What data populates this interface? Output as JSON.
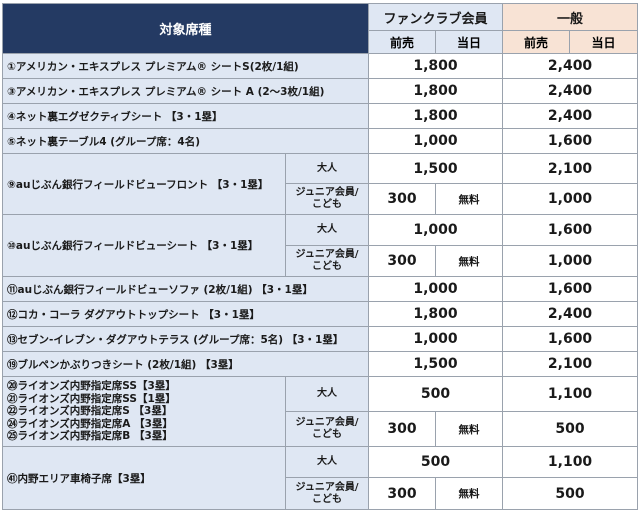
{
  "header": {
    "seat_type": "対象席種",
    "fanclub": "ファンクラブ会員",
    "general": "一般",
    "advance": "前売",
    "same_day": "当日"
  },
  "types": {
    "adult": "大人",
    "junior_line1": "ジュニア会員/",
    "junior_line2": "こども"
  },
  "rows": [
    {
      "name": "①アメリカン・エキスプレス プレミアム® シートS(2枚/1組)",
      "fc": "1,800",
      "gen": "2,400"
    },
    {
      "name": "③アメリカン・エキスプレス プレミアム® シート A (2～3枚/1組)",
      "fc": "1,800",
      "gen": "2,400"
    },
    {
      "name": "④ネット裏エグゼクティブシート 【3・1塁】",
      "fc": "1,800",
      "gen": "2,400"
    },
    {
      "name": "⑤ネット裏テーブル4 (グループ席：4名)",
      "fc": "1,000",
      "gen": "1,600"
    },
    {
      "name": "⑨auじぶん銀行フィールドビューフロント 【3・1塁】",
      "adult_fc": "1,500",
      "adult_gen": "2,100",
      "jr_fc_adv": "300",
      "jr_fc_day": "無料",
      "jr_gen": "1,000"
    },
    {
      "name": "⑩auじぶん銀行フィールドビューシート 【3・1塁】",
      "adult_fc": "1,000",
      "adult_gen": "1,600",
      "jr_fc_adv": "300",
      "jr_fc_day": "無料",
      "jr_gen": "1,000"
    },
    {
      "name": "⑪auじぶん銀行フィールドビューソファ (2枚/1組) 【3・1塁】",
      "fc": "1,000",
      "gen": "1,600"
    },
    {
      "name": "⑫コカ・コーラ ダグアウトトップシート 【3・1塁】",
      "fc": "1,800",
      "gen": "2,400"
    },
    {
      "name": "⑬セブン-イレブン・ダグアウトテラス (グループ席：5名) 【3・1塁】",
      "fc": "1,000",
      "gen": "1,600"
    },
    {
      "name": "⑲ブルペンかぶりつきシート (2枚/1組) 【3塁】",
      "fc": "1,500",
      "gen": "2,100"
    },
    {
      "names": [
        "⑳ライオンズ内野指定席SS【3塁】",
        "㉑ライオンズ内野指定席SS【1塁】",
        "㉒ライオンズ内野指定席S 【3塁】",
        "㉔ライオンズ内野指定席A 【3塁】",
        "㉕ライオンズ内野指定席B 【3塁】"
      ],
      "adult_fc": "500",
      "adult_gen": "1,100",
      "jr_fc_adv": "300",
      "jr_fc_day": "無料",
      "jr_gen": "500"
    },
    {
      "name": "㊶内野エリア車椅子席【3塁】",
      "adult_fc": "500",
      "adult_gen": "1,100",
      "jr_fc_adv": "300",
      "jr_fc_day": "無料",
      "jr_gen": "500"
    }
  ]
}
